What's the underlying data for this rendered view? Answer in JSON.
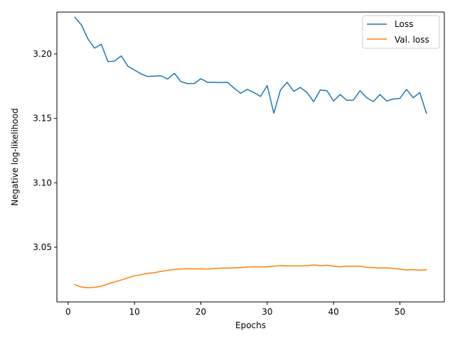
{
  "chart_data": {
    "type": "line",
    "title": "",
    "xlabel": "Epochs",
    "ylabel": "Negative log-likelihood",
    "xlim": [
      -1.7,
      56.7
    ],
    "ylim": [
      3.0075,
      3.2325
    ],
    "xticks": [
      0,
      10,
      20,
      30,
      40,
      50
    ],
    "yticks": [
      3.05,
      3.1,
      3.15,
      3.2
    ],
    "ytick_labels": [
      "3.05",
      "3.10",
      "3.15",
      "3.20"
    ],
    "grid": false,
    "legend_position": "top-right",
    "x": [
      1,
      2,
      3,
      4,
      5,
      6,
      7,
      8,
      9,
      10,
      11,
      12,
      13,
      14,
      15,
      16,
      17,
      18,
      19,
      20,
      21,
      22,
      23,
      24,
      25,
      26,
      27,
      28,
      29,
      30,
      31,
      32,
      33,
      34,
      35,
      36,
      37,
      38,
      39,
      40,
      41,
      42,
      43,
      44,
      45,
      46,
      47,
      48,
      49,
      50,
      51,
      52,
      53,
      54
    ],
    "series": [
      {
        "name": "Loss",
        "color": "#1f77b4",
        "values": [
          3.2285,
          3.2225,
          3.2115,
          3.2045,
          3.2075,
          3.194,
          3.1945,
          3.1985,
          3.1905,
          3.1875,
          3.1845,
          3.1825,
          3.1828,
          3.183,
          3.1805,
          3.185,
          3.1785,
          3.177,
          3.177,
          3.1808,
          3.178,
          3.178,
          3.1778,
          3.178,
          3.1735,
          3.1695,
          3.1725,
          3.17,
          3.167,
          3.1755,
          3.154,
          3.172,
          3.178,
          3.171,
          3.174,
          3.17,
          3.163,
          3.172,
          3.1715,
          3.1635,
          3.1685,
          3.164,
          3.1642,
          3.1715,
          3.166,
          3.163,
          3.1685,
          3.1635,
          3.165,
          3.1655,
          3.1725,
          3.166,
          3.17,
          3.154
        ]
      },
      {
        "name": "Val. loss",
        "color": "#ff7f0e",
        "values": [
          3.021,
          3.019,
          3.0185,
          3.0188,
          3.0197,
          3.0215,
          3.023,
          3.0245,
          3.0262,
          3.0278,
          3.0287,
          3.0297,
          3.0302,
          3.0312,
          3.032,
          3.0328,
          3.0331,
          3.0333,
          3.0331,
          3.0332,
          3.033,
          3.0333,
          3.0338,
          3.0337,
          3.034,
          3.0342,
          3.0346,
          3.0348,
          3.0347,
          3.0348,
          3.0352,
          3.0357,
          3.0355,
          3.0355,
          3.0354,
          3.0356,
          3.0362,
          3.0356,
          3.036,
          3.0353,
          3.0347,
          3.0353,
          3.0352,
          3.0353,
          3.0343,
          3.0342,
          3.0338,
          3.034,
          3.0335,
          3.033,
          3.0323,
          3.0326,
          3.0322,
          3.0325
        ]
      }
    ]
  }
}
